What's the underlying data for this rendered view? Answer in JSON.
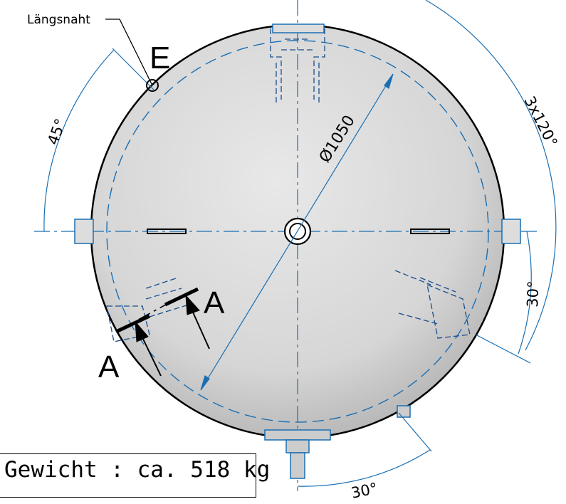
{
  "labels": {
    "seam": "Längsnaht",
    "detail": "E",
    "section_right": "A",
    "section_left": "A",
    "diameter": "Ø1050",
    "pattern_angle": "3x120°",
    "angle_top_left": "45°",
    "angle_right": "30°",
    "angle_bottom": "30°"
  },
  "weight_label": "Gewicht : ca. 518 kg",
  "colors": {
    "dimension_blue": "#1a6fb3",
    "outline": "#000000",
    "body_gray": "#d4d4d4",
    "hidden_blue": "#2a5fa0"
  }
}
